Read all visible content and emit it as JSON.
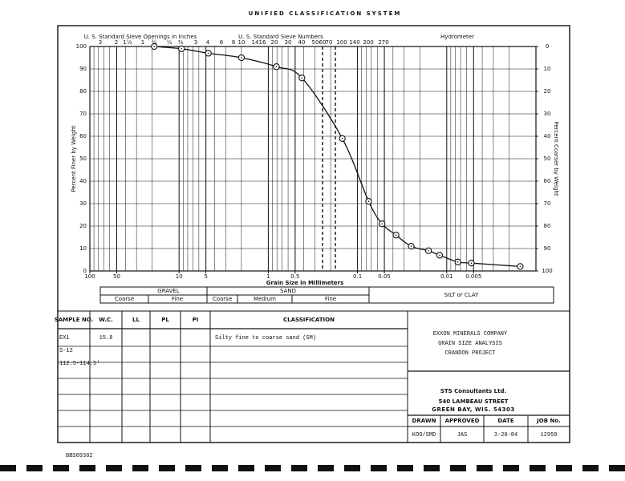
{
  "header": {
    "title": "UNIFIED CLASSIFICATION SYSTEM"
  },
  "chart_data": {
    "type": "scatter",
    "x_label": "Grain Size in Millimeters",
    "y_label": "Percent Finer by Weight",
    "y2_label": "Percent Coarser by Weight",
    "sieve_inches_title": "U. S. Standard Sieve Openings in Inches",
    "sieve_inches": [
      "3",
      "2",
      "1½",
      "1",
      "¾",
      "½",
      "⅜"
    ],
    "sieve_numbers_title": "U. S. Standard Sieve Numbers",
    "sieve_numbers": [
      "3",
      "4",
      "6",
      "8",
      "10",
      "14",
      "16",
      "20",
      "30",
      "40",
      "50",
      "60",
      "70",
      "100",
      "140",
      "200",
      "270"
    ],
    "hydrometer_title": "Hydrometer",
    "x": [
      19,
      9.4,
      4.7,
      2.0,
      0.81,
      0.42,
      0.148,
      0.075,
      0.053,
      0.037,
      0.025,
      0.016,
      0.012,
      0.0075,
      0.0053,
      0.0015
    ],
    "values": [
      100,
      99,
      97,
      95,
      91,
      86,
      59,
      31,
      21,
      16,
      11,
      9,
      7,
      4,
      3.5,
      2
    ],
    "color": "#111111",
    "curve": true,
    "xlim": [
      100,
      0.001
    ],
    "xticks": [
      100,
      50,
      10,
      5,
      1,
      0.5,
      0.1,
      0.05,
      0.01,
      0.005
    ],
    "x_log": true,
    "ylim": [
      0,
      100
    ],
    "yticks": [
      0,
      10,
      20,
      30,
      40,
      50,
      60,
      70,
      80,
      90,
      100
    ],
    "y2lim": [
      100,
      0
    ],
    "y2ticks": [
      0,
      10,
      20,
      30,
      40,
      50,
      60,
      70,
      80,
      90,
      100
    ],
    "grid": true
  },
  "soil_bands": {
    "gravel": "GRAVEL",
    "gravel_coarse": "Coarse",
    "gravel_fine": "Fine",
    "sand": "SAND",
    "sand_coarse": "Coarse",
    "sand_medium": "Medium",
    "sand_fine": "Fine",
    "silt_clay": "SILT or CLAY"
  },
  "table": {
    "headers": [
      "SAMPLE NO.",
      "W.C.",
      "LL",
      "PL",
      "PI",
      "CLASSIFICATION"
    ],
    "sample_no": [
      "EX1",
      "S-12",
      "112.5-114.5'"
    ],
    "wc": "15.8",
    "classification": "Silty fine to coarse sand (SM)"
  },
  "project": [
    "EXXON MINERALS COMPANY",
    "GRAIN SIZE ANALYSIS",
    "CRANDON PROJECT"
  ],
  "company": {
    "name": "STS Consultants Ltd.",
    "street": "540 LAMBEAU STREET",
    "city": "GREEN BAY, WIS. 54303"
  },
  "signoff": {
    "headers": [
      "DRAWN",
      "APPROVED",
      "DATE",
      "JOB No."
    ],
    "values": [
      "KOO/SMD",
      "JAS",
      "3-20-84",
      "12959"
    ]
  },
  "footer": {
    "code": "BBS09302"
  }
}
